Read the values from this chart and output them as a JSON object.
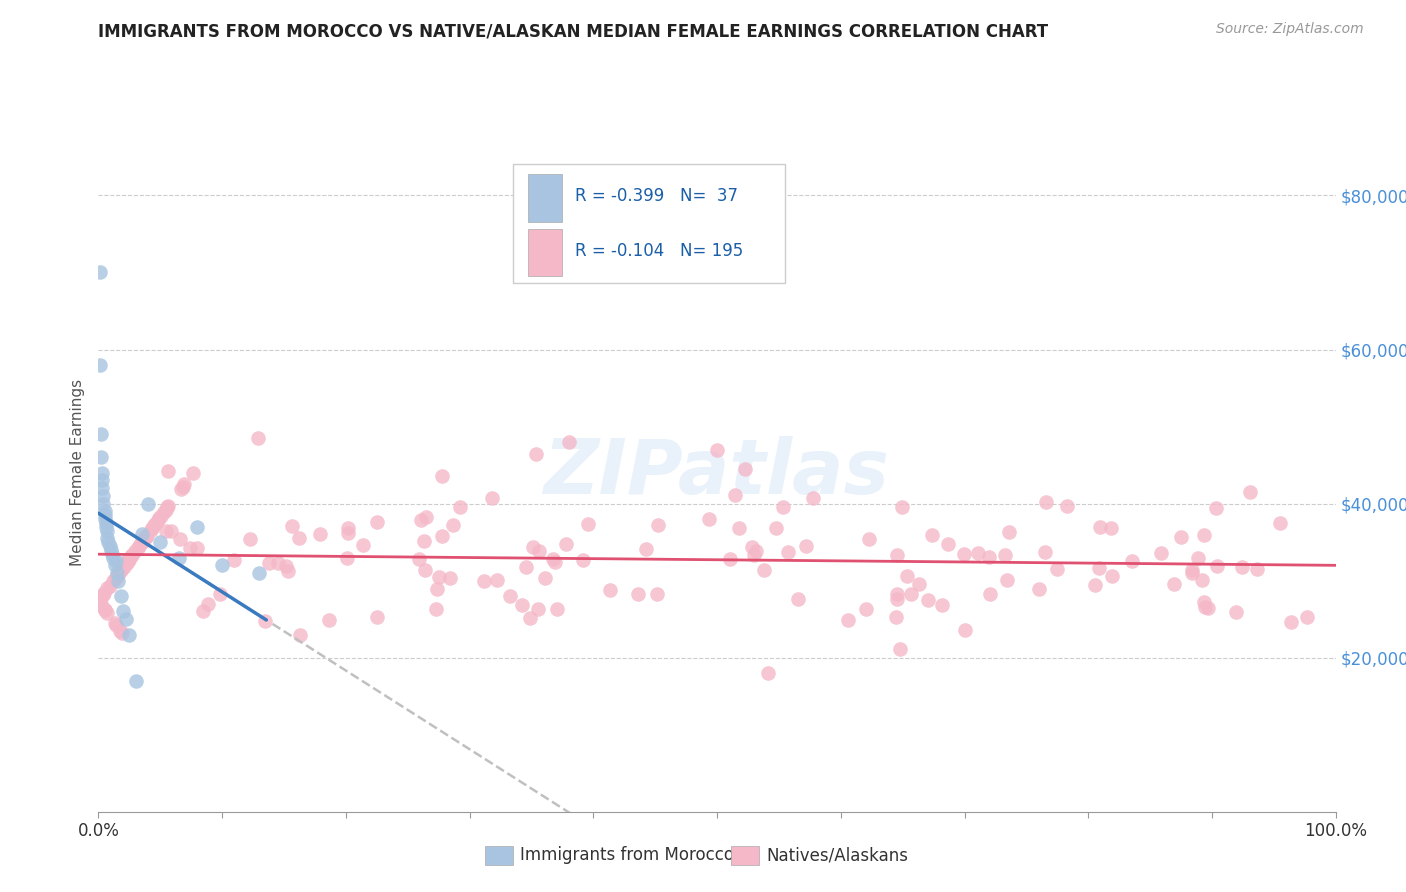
{
  "title": "IMMIGRANTS FROM MOROCCO VS NATIVE/ALASKAN MEDIAN FEMALE EARNINGS CORRELATION CHART",
  "source": "Source: ZipAtlas.com",
  "ylabel": "Median Female Earnings",
  "ytick_labels": [
    "$20,000",
    "$40,000",
    "$60,000",
    "$80,000"
  ],
  "ytick_values": [
    20000,
    40000,
    60000,
    80000
  ],
  "ylim": [
    0,
    88000
  ],
  "xlim": [
    0.0,
    1.0
  ],
  "r_morocco": -0.399,
  "n_morocco": 37,
  "r_native": -0.104,
  "n_native": 195,
  "color_morocco": "#a8c4e0",
  "color_morocco_line": "#3a7abf",
  "color_native": "#f4b8c8",
  "color_native_line": "#e05070",
  "color_trendline_ext": "#c0c0c0",
  "background_color": "#ffffff",
  "watermark": "ZIPatlas",
  "morocco_x": [
    0.001,
    0.001,
    0.002,
    0.003,
    0.003,
    0.003,
    0.004,
    0.004,
    0.005,
    0.005,
    0.005,
    0.006,
    0.006,
    0.007,
    0.007,
    0.008,
    0.009,
    0.01,
    0.011,
    0.012,
    0.013,
    0.014,
    0.015,
    0.016,
    0.018,
    0.02,
    0.022,
    0.025,
    0.03,
    0.035,
    0.04,
    0.05,
    0.065,
    0.08,
    0.1,
    0.13,
    0.002
  ],
  "morocco_y": [
    70000,
    58000,
    49000,
    44000,
    43000,
    42000,
    41000,
    40000,
    39000,
    38500,
    38000,
    37500,
    37000,
    36500,
    35500,
    35000,
    34500,
    34000,
    33500,
    33000,
    32000,
    32500,
    31000,
    30000,
    28000,
    26000,
    25000,
    23000,
    17000,
    36000,
    40000,
    35000,
    33000,
    37000,
    32000,
    31000,
    46000
  ]
}
